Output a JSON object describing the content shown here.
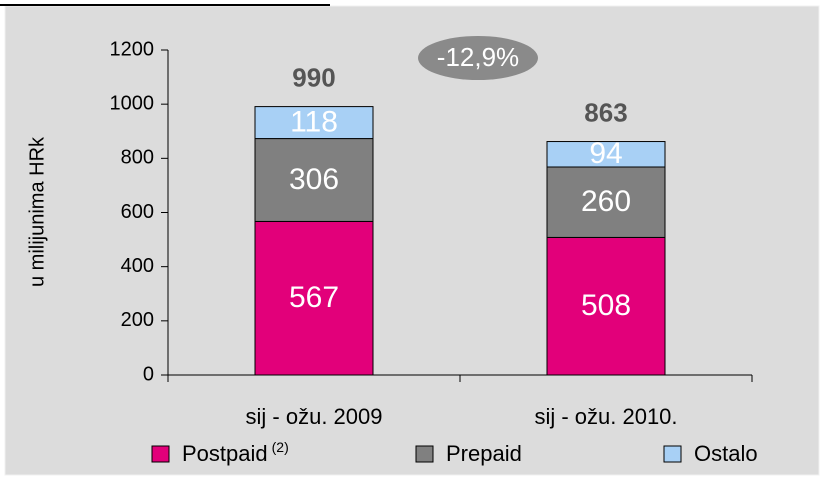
{
  "chart_data": {
    "type": "bar",
    "stacked": true,
    "ylabel": "u milijunima HRk",
    "annotation": "-12,9%",
    "categories": [
      "sij - ožu. 2009",
      "sij - ožu. 2010."
    ],
    "series": [
      {
        "name": "Postpaid",
        "footnote": "(2)",
        "color": "#e2007a",
        "values": [
          567,
          508
        ]
      },
      {
        "name": "Prepaid",
        "color": "#808080",
        "values": [
          306,
          260
        ]
      },
      {
        "name": "Ostalo",
        "color": "#a8d0f5",
        "values": [
          118,
          94
        ]
      }
    ],
    "totals": [
      990,
      863
    ],
    "ylim": [
      0,
      1200
    ],
    "yticks": [
      0,
      200,
      400,
      600,
      800,
      1000,
      1200
    ]
  }
}
